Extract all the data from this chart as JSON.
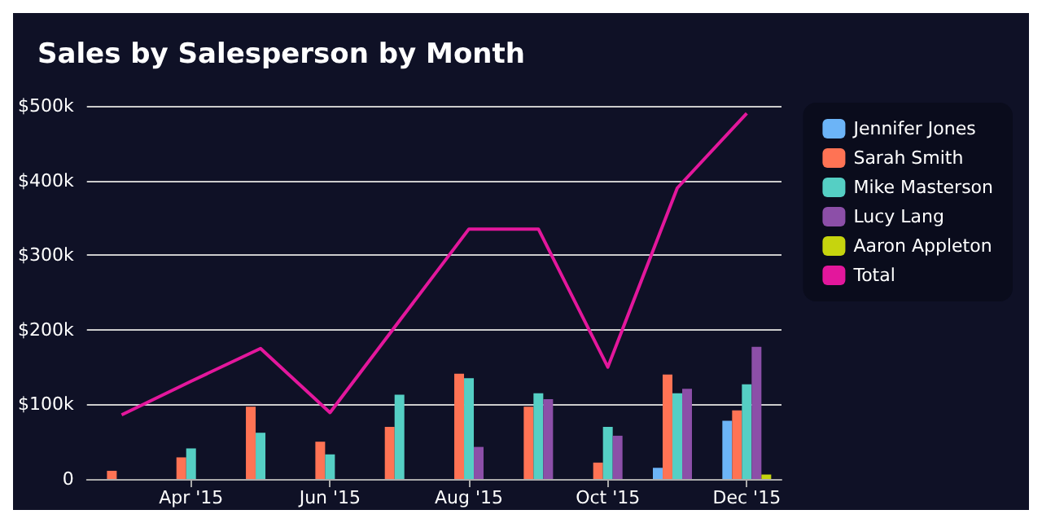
{
  "chart_data": {
    "type": "bar",
    "title": "Sales by Salesperson by Month",
    "categories": [
      null,
      "Apr '15",
      null,
      "Jun '15",
      null,
      "Aug '15",
      null,
      "Oct '15",
      null,
      "Dec '15"
    ],
    "series": [
      {
        "name": "Jennifer Jones",
        "color": "#6cb4f7",
        "values": [
          null,
          null,
          null,
          null,
          null,
          null,
          null,
          null,
          15000,
          78000
        ]
      },
      {
        "name": "Sarah Smith",
        "color": "#ff7354",
        "values": [
          11000,
          29000,
          97000,
          50000,
          70000,
          141000,
          97000,
          22000,
          140000,
          92000
        ]
      },
      {
        "name": "Mike Masterson",
        "color": "#55cfc4",
        "values": [
          null,
          41000,
          62000,
          33000,
          113000,
          135000,
          115000,
          70000,
          115000,
          127000
        ]
      },
      {
        "name": "Lucy Lang",
        "color": "#8c4fa8",
        "values": [
          null,
          null,
          null,
          null,
          null,
          43000,
          107000,
          58000,
          121000,
          177000
        ]
      },
      {
        "name": "Aaron Appleton",
        "color": "#c6d40e",
        "values": [
          null,
          null,
          null,
          null,
          null,
          null,
          null,
          null,
          null,
          6000
        ]
      },
      {
        "name": "Total",
        "color": "#e3179c",
        "type": "line",
        "values": [
          86000,
          131000,
          175000,
          89000,
          212000,
          335000,
          335000,
          150000,
          390000,
          490000
        ]
      }
    ],
    "ylim": [
      0,
      500000
    ],
    "yticks": [
      {
        "value": 0,
        "label": "0"
      },
      {
        "value": 100000,
        "label": "$100k"
      },
      {
        "value": 200000,
        "label": "$200k"
      },
      {
        "value": 300000,
        "label": "$300k"
      },
      {
        "value": 400000,
        "label": "$400k"
      },
      {
        "value": 500000,
        "label": "$500k"
      }
    ],
    "grid": "y",
    "legend": "right",
    "marker": "none",
    "line_style": "solid"
  }
}
